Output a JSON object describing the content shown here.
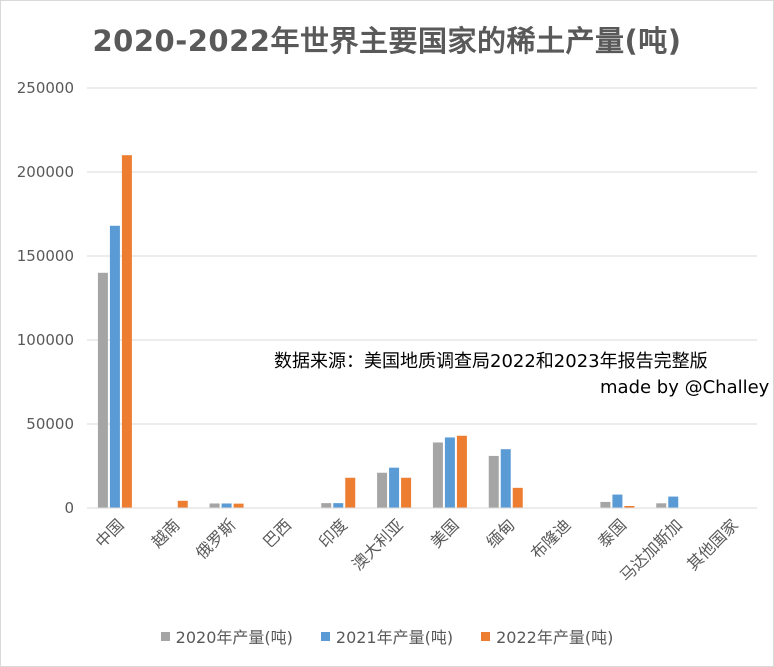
{
  "chart_data": {
    "type": "bar",
    "title": "2020-2022年世界主要国家的稀土产量(吨)",
    "categories": [
      "中国",
      "越南",
      "俄罗斯",
      "巴西",
      "印度",
      "澳大利亚",
      "美国",
      "缅甸",
      "布隆迪",
      "泰国",
      "马达加斯加",
      "其他国家"
    ],
    "series": [
      {
        "name": "2020年产量(吨)",
        "color": "#a5a5a5",
        "values": [
          140000,
          0,
          2700,
          0,
          2900,
          21000,
          39000,
          31000,
          300,
          3600,
          2800,
          0
        ]
      },
      {
        "name": "2021年产量(吨)",
        "color": "#5b9bd5",
        "values": [
          168000,
          0,
          2700,
          0,
          2900,
          24000,
          42000,
          35000,
          0,
          8000,
          6800,
          0
        ]
      },
      {
        "name": "2022年产量(吨)",
        "color": "#ed7d31",
        "values": [
          210000,
          4300,
          2600,
          0,
          18000,
          18000,
          43000,
          12000,
          0,
          1200,
          0,
          0
        ]
      }
    ],
    "ylim": [
      0,
      250000
    ],
    "yticks": [
      0,
      50000,
      100000,
      150000,
      200000,
      250000
    ],
    "ytick_labels": [
      "0",
      "50000",
      "100000",
      "150000",
      "200000",
      "250000"
    ],
    "grid": true,
    "legend_position": "bottom"
  },
  "annotations": {
    "source": "数据来源：美国地质调查局2022和2023年报告完整版",
    "author": "made by @Challey"
  }
}
